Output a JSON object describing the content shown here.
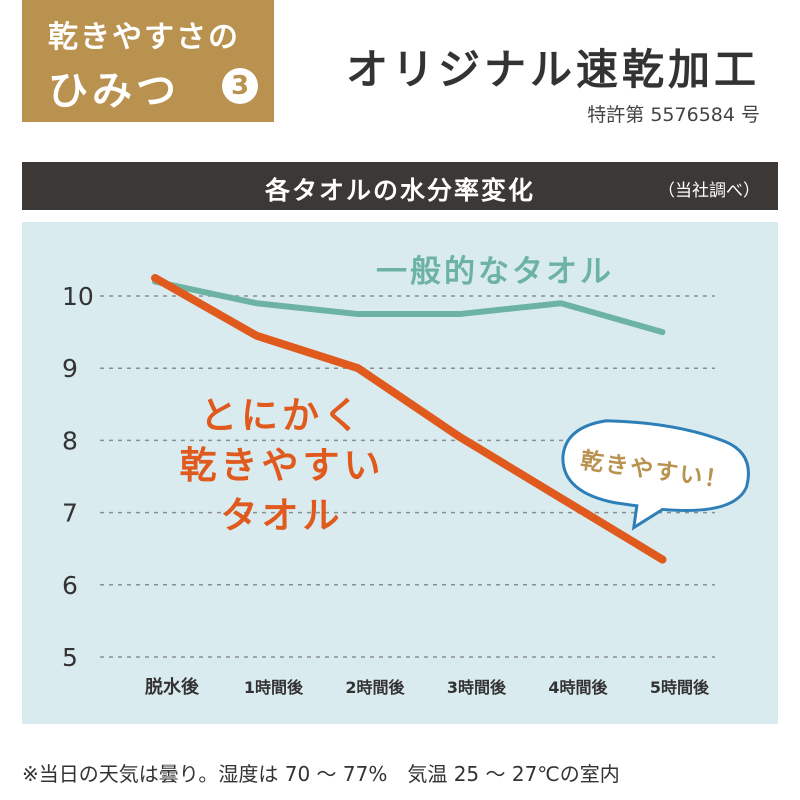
{
  "badge": {
    "line1": "乾きやすさの",
    "line2": "ひみつ",
    "number": "3"
  },
  "header": {
    "title": "オリジナル速乾加工",
    "patent": "特許第 5576584 号"
  },
  "chart_header": {
    "title": "各タオルの水分率変化",
    "note": "（当社調べ）"
  },
  "chart_data": {
    "type": "line",
    "title": "各タオルの水分率変化",
    "xlabel": "",
    "ylabel": "",
    "categories": [
      "脱水後",
      "1時間後",
      "2時間後",
      "3時間後",
      "4時間後",
      "5時間後"
    ],
    "yticks": [
      5,
      6,
      7,
      8,
      9,
      10
    ],
    "ylim": [
      5,
      10.3
    ],
    "grid": true,
    "series": [
      {
        "name": "一般的なタオル",
        "color": "#6db3a4",
        "values": [
          10.2,
          9.9,
          9.75,
          9.75,
          9.9,
          9.5
        ]
      },
      {
        "name": "とにかく乾きやすいタオル",
        "color": "#e05a1e",
        "values": [
          10.25,
          9.45,
          9.0,
          8.05,
          7.2,
          6.35
        ]
      }
    ],
    "annotations": {
      "normal_label": "一般的なタオル",
      "fast_label_lines": [
        "とにかく",
        "乾きやすい",
        "タオル"
      ],
      "bubble_text": "乾きやすい！"
    }
  },
  "colors": {
    "badge": "#b8924e",
    "bar": "#3c3836",
    "plot_bg": "#d9ebef",
    "normal": "#6db3a4",
    "fast": "#e05a1e",
    "bubble_border": "#2e7fb8"
  },
  "footnote": "※当日の天気は曇り。湿度は 70 ～ 77%　気温 25 ～ 27℃の室内"
}
